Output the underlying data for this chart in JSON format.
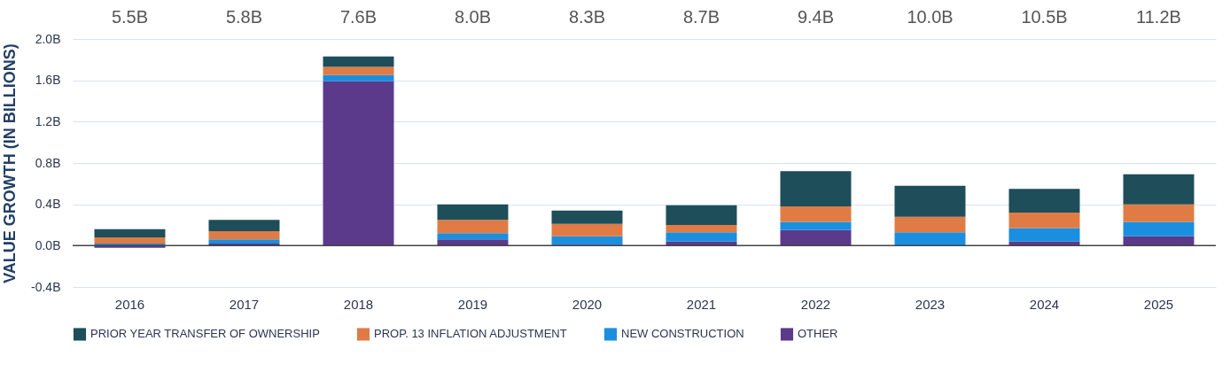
{
  "chart_data": {
    "type": "bar",
    "stacked": true,
    "ylabel": "VALUE GROWTH (IN BILLIONS)",
    "categories": [
      "2016",
      "2017",
      "2018",
      "2019",
      "2020",
      "2021",
      "2022",
      "2023",
      "2024",
      "2025"
    ],
    "series": [
      {
        "name": "OTHER",
        "color": "#5b3a8c",
        "values": [
          -0.02,
          0.02,
          1.59,
          0.06,
          0.01,
          0.04,
          0.15,
          0,
          0.04,
          0.09
        ]
      },
      {
        "name": "NEW CONSTRUCTION",
        "color": "#1a8fe0",
        "values": [
          0.02,
          0.04,
          0.06,
          0.06,
          0.08,
          0.09,
          0.08,
          0.13,
          0.13,
          0.14
        ]
      },
      {
        "name": "PROP. 13 INFLATION ADJUSTMENT",
        "color": "#e07b45",
        "values": [
          0.06,
          0.08,
          0.08,
          0.13,
          0.12,
          0.07,
          0.15,
          0.15,
          0.15,
          0.17
        ]
      },
      {
        "name": "PRIOR YEAR TRANSFER OF OWNERSHIP",
        "color": "#1d4e5a",
        "values": [
          0.08,
          0.11,
          0.1,
          0.15,
          0.13,
          0.19,
          0.34,
          0.3,
          0.23,
          0.29
        ]
      }
    ],
    "ylim": [
      -0.4,
      2.0
    ],
    "yticks": [
      {
        "value": -0.4,
        "label": "-0.4B"
      },
      {
        "value": 0,
        "label": "0.0B"
      },
      {
        "value": 0.4,
        "label": "0.4B"
      },
      {
        "value": 0.8,
        "label": "0.8B"
      },
      {
        "value": 1.2,
        "label": "1.2B"
      },
      {
        "value": 1.6,
        "label": "1.6B"
      },
      {
        "value": 2.0,
        "label": "2.0B"
      }
    ],
    "grid": "y",
    "legend": "bottom",
    "ref_lines": [
      {
        "axis": "y",
        "value": 0,
        "color": "#444444"
      }
    ],
    "annotations": [
      "5.5B",
      "5.8B",
      "7.6B",
      "8.0B",
      "8.3B",
      "8.7B",
      "9.4B",
      "10.0B",
      "10.5B",
      "11.2B"
    ]
  }
}
